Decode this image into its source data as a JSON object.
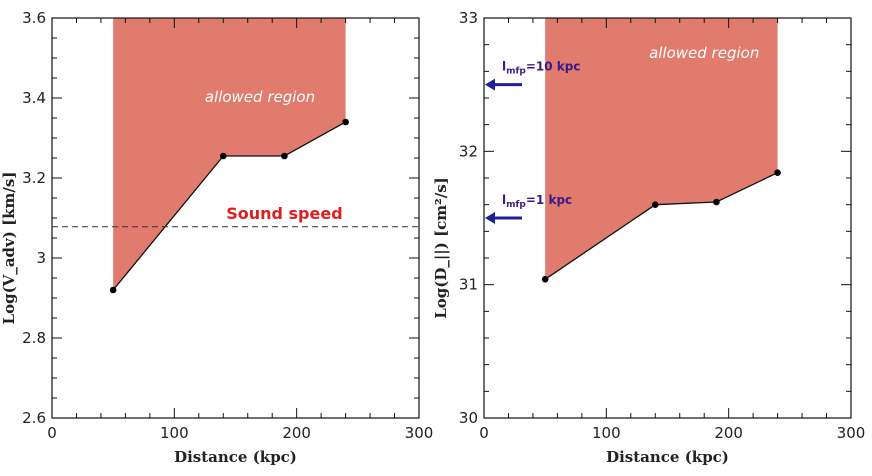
{
  "chart_data": [
    {
      "type": "area",
      "id": "left",
      "xlabel": "Distance (kpc)",
      "ylabel": "Log(V_adv) [km/s]",
      "xlim": [
        0,
        300
      ],
      "ylim": [
        2.6,
        3.6
      ],
      "xticks": [
        0,
        100,
        200,
        300
      ],
      "yticks": [
        2.6,
        2.8,
        3.0,
        3.2,
        3.4,
        3.6
      ],
      "ytick_labels": [
        "2.6",
        "2.8",
        "3",
        "3.2",
        "3.4",
        "3.6"
      ],
      "points": {
        "x": [
          50,
          140,
          190,
          240
        ],
        "y": [
          2.92,
          3.255,
          3.255,
          3.34
        ]
      },
      "region_label": "allowed region",
      "region_color": "#e07b6e",
      "hline": {
        "y": 3.078,
        "label": "Sound speed",
        "color": "#dd1f1f"
      }
    },
    {
      "type": "area",
      "id": "right",
      "xlabel": "Distance (kpc)",
      "ylabel": "Log(D_||) [cm²/s]",
      "xlim": [
        0,
        300
      ],
      "ylim": [
        30,
        33
      ],
      "xticks": [
        0,
        100,
        200,
        300
      ],
      "yticks": [
        30,
        31,
        32,
        33
      ],
      "ytick_labels": [
        "30",
        "31",
        "32",
        "33"
      ],
      "points": {
        "x": [
          50,
          140,
          190,
          240
        ],
        "y": [
          31.04,
          31.6,
          31.62,
          31.84
        ]
      },
      "region_label": "allowed region",
      "region_color": "#e07b6e",
      "markers": [
        {
          "label": "l",
          "sub": "mfp",
          "rest": "=10 kpc",
          "y": 32.5,
          "color": "#1f1f9e"
        },
        {
          "label": "l",
          "sub": "mfp",
          "rest": "=1 kpc",
          "y": 31.5,
          "color": "#1f1f9e"
        }
      ]
    }
  ]
}
